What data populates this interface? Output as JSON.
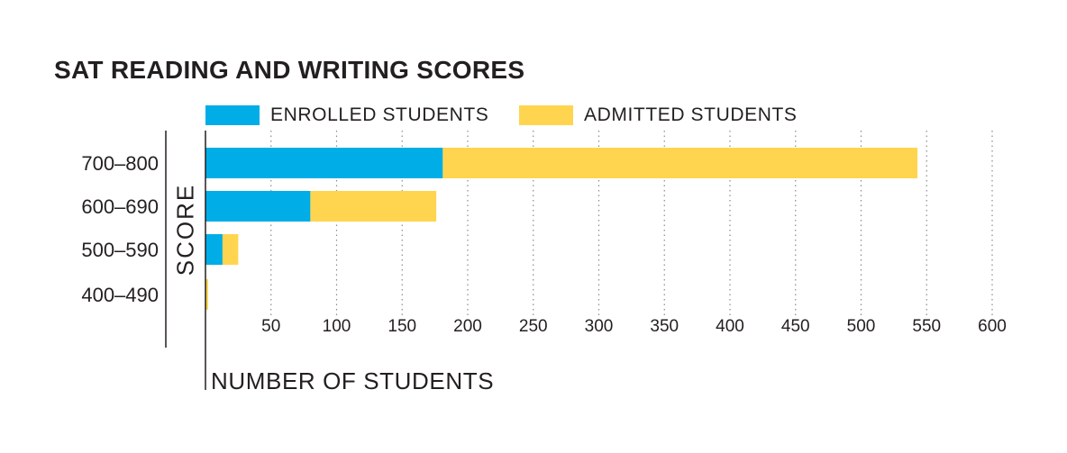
{
  "chart_data": {
    "type": "bar",
    "orientation": "horizontal",
    "stacked": true,
    "title": "SAT READING AND WRITING SCORES",
    "xlabel": "NUMBER OF STUDENTS",
    "ylabel": "SCORE",
    "categories": [
      "700–800",
      "600–690",
      "500–590",
      "400–490"
    ],
    "series": [
      {
        "name": "ENROLLED STUDENTS",
        "color": "#00ade6",
        "values": [
          181,
          80,
          13,
          0
        ]
      },
      {
        "name": "ADMITTED STUDENTS",
        "color": "#ffd54f",
        "values": [
          362,
          96,
          12,
          2
        ]
      }
    ],
    "xticks": [
      "50",
      "100",
      "150",
      "200",
      "250",
      "300",
      "350",
      "400",
      "450",
      "500",
      "550",
      "600"
    ],
    "xlim": [
      0,
      600
    ],
    "grid": "vertical-dotted",
    "legend_position": "top"
  }
}
